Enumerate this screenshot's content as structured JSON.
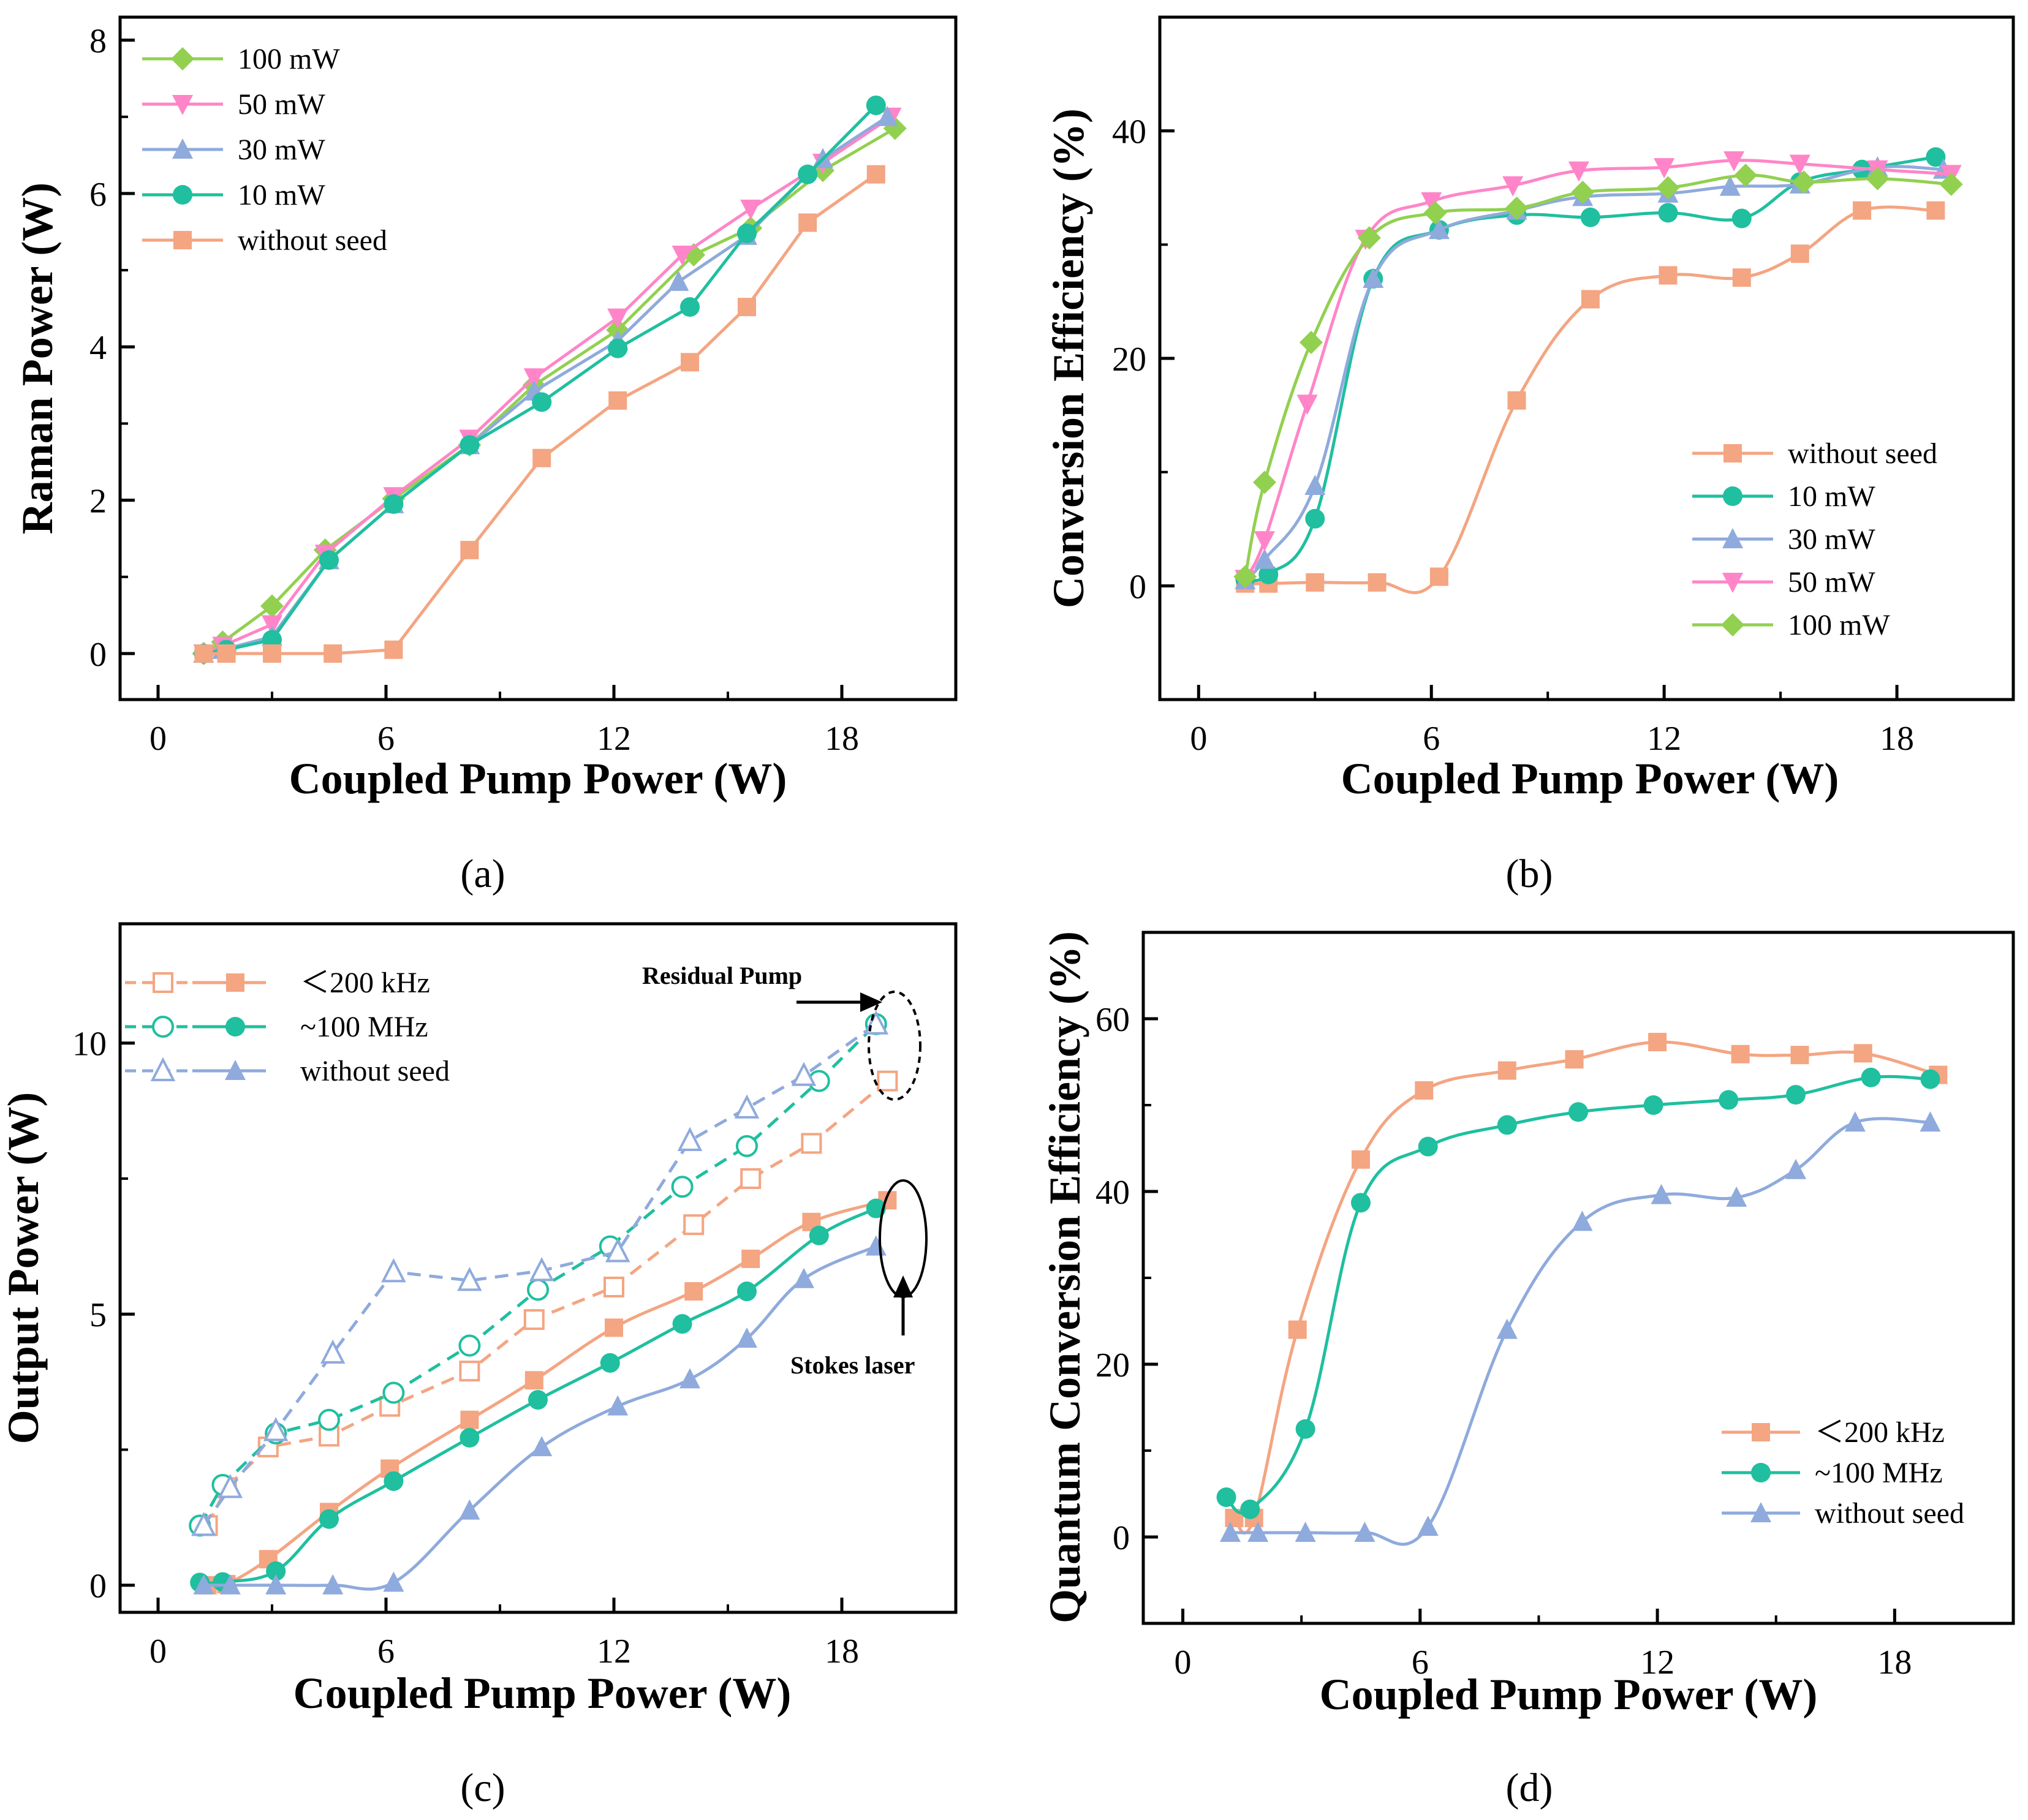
{
  "chart_data": [
    {
      "id": "a",
      "type": "line",
      "panel_label": "(a)",
      "xlabel": "Coupled Pump Power (W)",
      "ylabel": "Raman Power (W)",
      "xlim": [
        -1,
        21
      ],
      "ylim": [
        -0.6,
        8.3
      ],
      "xticks": [
        0,
        6,
        12,
        18
      ],
      "yticks": [
        0,
        2,
        4,
        6,
        8
      ],
      "legend_position": "top-left",
      "series": [
        {
          "name": "100 mW",
          "color": "#92d050",
          "marker": "diamond",
          "x": [
            1.2,
            1.7,
            3.0,
            4.4,
            6.2,
            8.2,
            9.9,
            12.1,
            14.1,
            15.6,
            17.5,
            19.4
          ],
          "y": [
            0.0,
            0.15,
            0.62,
            1.35,
            2.02,
            2.72,
            3.5,
            4.22,
            5.2,
            5.55,
            6.3,
            6.85
          ]
        },
        {
          "name": "50 mW",
          "color": "#ff85c8",
          "marker": "triangle-down",
          "x": [
            1.2,
            1.7,
            3.0,
            4.4,
            6.2,
            8.2,
            9.9,
            12.1,
            13.8,
            15.6,
            17.5,
            19.3
          ],
          "y": [
            0.0,
            0.1,
            0.38,
            1.3,
            2.05,
            2.8,
            3.6,
            4.38,
            5.2,
            5.8,
            6.4,
            7.0
          ]
        },
        {
          "name": "30 mW",
          "color": "#8faadc",
          "marker": "triangle",
          "x": [
            1.2,
            1.7,
            3.0,
            4.5,
            6.2,
            8.2,
            9.9,
            12.1,
            13.7,
            15.5,
            17.5,
            19.2
          ],
          "y": [
            0.0,
            0.05,
            0.22,
            1.22,
            1.95,
            2.72,
            3.42,
            4.08,
            4.85,
            5.45,
            6.45,
            7.0
          ]
        },
        {
          "name": "10 mW",
          "color": "#1fbf9f",
          "marker": "circle",
          "x": [
            1.2,
            1.8,
            3.0,
            4.5,
            6.2,
            8.2,
            10.1,
            12.1,
            14.0,
            15.5,
            17.1,
            18.9
          ],
          "y": [
            0.0,
            0.05,
            0.18,
            1.22,
            1.95,
            2.72,
            3.28,
            3.98,
            4.52,
            5.48,
            6.25,
            7.15
          ]
        },
        {
          "name": "without seed",
          "color": "#f4a582",
          "marker": "square",
          "x": [
            1.2,
            1.8,
            3.0,
            4.6,
            6.2,
            8.2,
            10.1,
            12.1,
            14.0,
            15.5,
            17.1,
            18.9
          ],
          "y": [
            0.0,
            0.0,
            0.0,
            0.0,
            0.05,
            1.35,
            2.55,
            3.3,
            3.8,
            4.52,
            5.62,
            6.25
          ]
        }
      ]
    },
    {
      "id": "b",
      "type": "line",
      "panel_label": "(b)",
      "xlabel": "Coupled Pump Power (W)",
      "ylabel": "Conversion Efficiency (%)",
      "xlim": [
        -1,
        21
      ],
      "ylim": [
        -10,
        50
      ],
      "xticks": [
        0,
        6,
        12,
        18
      ],
      "yticks": [
        0,
        20,
        40
      ],
      "legend_position": "bottom-right",
      "series": [
        {
          "name": "without seed",
          "color": "#f4a582",
          "marker": "square",
          "x": [
            1.2,
            1.8,
            3.0,
            4.6,
            6.2,
            8.2,
            10.1,
            12.1,
            14.0,
            15.5,
            17.1,
            19.0
          ],
          "y": [
            0.2,
            0.2,
            0.3,
            0.3,
            0.8,
            16.3,
            25.2,
            27.3,
            27.1,
            29.2,
            33.0,
            33.0
          ]
        },
        {
          "name": "10 mW",
          "color": "#1fbf9f",
          "marker": "circle",
          "x": [
            1.2,
            1.8,
            3.0,
            4.5,
            6.2,
            8.2,
            10.1,
            12.1,
            14.0,
            15.5,
            17.1,
            19.0
          ],
          "y": [
            0.6,
            1.0,
            5.9,
            27.0,
            31.3,
            32.6,
            32.4,
            32.8,
            32.3,
            35.5,
            36.6,
            37.7
          ]
        },
        {
          "name": "30 mW",
          "color": "#8faadc",
          "marker": "triangle",
          "x": [
            1.2,
            1.7,
            3.0,
            4.5,
            6.2,
            8.2,
            9.9,
            12.1,
            13.7,
            15.5,
            17.5,
            19.2
          ],
          "y": [
            0.5,
            2.3,
            8.8,
            27.0,
            31.3,
            33.0,
            34.2,
            34.5,
            35.1,
            35.3,
            36.8,
            36.6
          ]
        },
        {
          "name": "50 mW",
          "color": "#ff85c8",
          "marker": "triangle-down",
          "x": [
            1.2,
            1.7,
            2.8,
            4.3,
            6.0,
            8.1,
            9.8,
            12.0,
            13.8,
            15.5,
            17.5,
            19.4
          ],
          "y": [
            0.6,
            4.0,
            16.0,
            30.5,
            33.8,
            35.2,
            36.5,
            36.8,
            37.4,
            37.1,
            36.6,
            36.2
          ]
        },
        {
          "name": "100 mW",
          "color": "#92d050",
          "marker": "diamond",
          "x": [
            1.2,
            1.7,
            2.9,
            4.4,
            6.1,
            8.2,
            9.9,
            12.1,
            14.1,
            15.6,
            17.5,
            19.4
          ],
          "y": [
            0.8,
            9.1,
            21.4,
            30.6,
            32.8,
            33.2,
            34.6,
            35.0,
            36.1,
            35.5,
            35.8,
            35.3
          ]
        }
      ]
    },
    {
      "id": "c",
      "type": "line",
      "panel_label": "(c)",
      "xlabel": "Coupled Pump Power (W)",
      "ylabel": "Output Power (W)",
      "xlim": [
        -1,
        21
      ],
      "ylim": [
        -0.5,
        12.2
      ],
      "xticks": [
        0,
        6,
        12,
        18
      ],
      "yticks": [
        0,
        5,
        10
      ],
      "legend_position": "top-left",
      "legend": [
        {
          "label": "＜200 kHz",
          "color": "#f4a582",
          "marker": "square"
        },
        {
          "label": "~100 MHz",
          "color": "#1fbf9f",
          "marker": "circle"
        },
        {
          "label": "without seed",
          "color": "#8faadc",
          "marker": "triangle"
        }
      ],
      "series": [
        {
          "name": "＜200 kHz residual pump",
          "color": "#f4a582",
          "marker": "square-open",
          "dashed": true,
          "x": [
            1.3,
            1.8,
            2.9,
            4.5,
            6.1,
            8.2,
            9.9,
            12.0,
            14.1,
            15.6,
            17.2,
            19.2
          ],
          "y": [
            1.1,
            1.8,
            2.55,
            2.75,
            3.3,
            3.95,
            4.9,
            5.5,
            6.65,
            7.5,
            8.15,
            9.3
          ]
        },
        {
          "name": "~100 MHz residual pump",
          "color": "#1fbf9f",
          "marker": "circle-open",
          "dashed": true,
          "x": [
            1.1,
            1.7,
            3.1,
            4.5,
            6.2,
            8.2,
            10.0,
            11.9,
            13.8,
            15.5,
            17.4,
            18.9
          ],
          "y": [
            1.1,
            1.85,
            2.8,
            3.05,
            3.55,
            4.42,
            5.45,
            6.25,
            7.35,
            8.1,
            9.3,
            10.35
          ]
        },
        {
          "name": "without seed residual pump",
          "color": "#8faadc",
          "marker": "triangle-open",
          "dashed": true,
          "x": [
            1.2,
            1.9,
            3.1,
            4.6,
            6.2,
            8.2,
            10.1,
            12.1,
            14.0,
            15.5,
            17.0,
            18.9
          ],
          "y": [
            1.1,
            1.8,
            2.85,
            4.28,
            5.78,
            5.62,
            5.8,
            6.15,
            8.2,
            8.8,
            9.4,
            10.35
          ]
        },
        {
          "name": "＜200 kHz Stokes",
          "color": "#f4a582",
          "marker": "square",
          "dashed": false,
          "x": [
            1.3,
            1.8,
            2.9,
            4.5,
            6.1,
            8.2,
            9.9,
            12.0,
            14.1,
            15.6,
            17.2,
            19.2
          ],
          "y": [
            0.0,
            0.02,
            0.48,
            1.35,
            2.15,
            3.05,
            3.78,
            4.75,
            5.42,
            6.02,
            6.7,
            7.1
          ]
        },
        {
          "name": "~100 MHz Stokes",
          "color": "#1fbf9f",
          "marker": "circle",
          "dashed": false,
          "x": [
            1.1,
            1.7,
            3.1,
            4.5,
            6.2,
            8.2,
            10.0,
            11.9,
            13.8,
            15.5,
            17.4,
            18.9
          ],
          "y": [
            0.05,
            0.06,
            0.26,
            1.22,
            1.92,
            2.72,
            3.42,
            4.1,
            4.82,
            5.42,
            6.45,
            6.95
          ]
        },
        {
          "name": "without seed Stokes",
          "color": "#8faadc",
          "marker": "triangle",
          "dashed": false,
          "x": [
            1.2,
            1.9,
            3.1,
            4.6,
            6.2,
            8.2,
            10.1,
            12.1,
            14.0,
            15.5,
            17.0,
            18.9
          ],
          "y": [
            0.0,
            0.0,
            0.0,
            0.0,
            0.05,
            1.38,
            2.55,
            3.3,
            3.8,
            4.55,
            5.65,
            6.25
          ]
        }
      ],
      "annotations": [
        "Residual Pump",
        "Stokes laser"
      ]
    },
    {
      "id": "d",
      "type": "line",
      "panel_label": "(d)",
      "xlabel": "Coupled Pump Power (W)",
      "ylabel": "Quantum Conversion Efficiency (%)",
      "xlim": [
        -1,
        21
      ],
      "ylim": [
        -10,
        70
      ],
      "xticks": [
        0,
        6,
        12,
        18
      ],
      "yticks": [
        0,
        20,
        40,
        60
      ],
      "legend_position": "bottom-right",
      "series": [
        {
          "name": "＜200 kHz",
          "color": "#f4a582",
          "marker": "square",
          "x": [
            1.3,
            1.8,
            2.9,
            4.5,
            6.1,
            8.2,
            9.9,
            12.0,
            14.1,
            15.6,
            17.2,
            19.1
          ],
          "y": [
            2.2,
            2.2,
            24.0,
            43.7,
            51.7,
            54.0,
            55.3,
            57.3,
            55.9,
            55.8,
            56.0,
            53.5
          ]
        },
        {
          "name": "~100 MHz",
          "color": "#1fbf9f",
          "marker": "circle",
          "x": [
            1.1,
            1.7,
            3.1,
            4.5,
            6.2,
            8.2,
            10.0,
            11.9,
            13.8,
            15.5,
            17.4,
            18.9
          ],
          "y": [
            4.6,
            3.2,
            12.5,
            38.7,
            45.2,
            47.7,
            49.2,
            50.0,
            50.6,
            51.2,
            53.2,
            53.0
          ]
        },
        {
          "name": "without seed",
          "color": "#8faadc",
          "marker": "triangle",
          "x": [
            1.2,
            1.9,
            3.1,
            4.6,
            6.2,
            8.2,
            10.1,
            12.1,
            14.0,
            15.5,
            17.0,
            18.9
          ],
          "y": [
            0.5,
            0.5,
            0.5,
            0.5,
            1.2,
            24.0,
            36.5,
            39.6,
            39.3,
            42.5,
            48.0,
            48.0
          ]
        }
      ]
    }
  ]
}
